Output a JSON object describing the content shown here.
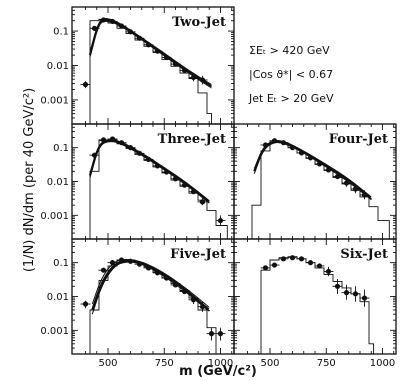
{
  "chart_data": {
    "type": "scatter",
    "ylabel": "(1/N)  dN/dm  (per 40 GeV/c²)",
    "xlabel": "m   (GeV/c²)",
    "cuts": [
      "ΣEₜ > 420 GeV",
      "|Cos ϑ*| < 0.67",
      "Jet Eₜ > 20 GeV"
    ],
    "xlim": [
      340,
      1060
    ],
    "ylim": [
      0.0002,
      0.5
    ],
    "yscale": "log",
    "x_ticks": [
      500,
      750,
      1000
    ],
    "y_ticks": [
      {
        "v": 0.1,
        "label": "0.1"
      },
      {
        "v": 0.01,
        "label": "0.01"
      },
      {
        "v": 0.001,
        "label": "0.001"
      }
    ],
    "panels": [
      {
        "title": "Two-Jet",
        "show_y_labels": true,
        "show_x_labels": false,
        "points": [
          {
            "x": 400,
            "y": 0.0028,
            "lo": 0.0022,
            "hi": 0.0035
          },
          {
            "x": 440,
            "y": 0.12
          },
          {
            "x": 480,
            "y": 0.21
          },
          {
            "x": 520,
            "y": 0.19
          },
          {
            "x": 560,
            "y": 0.14
          },
          {
            "x": 600,
            "y": 0.095
          },
          {
            "x": 640,
            "y": 0.062
          },
          {
            "x": 680,
            "y": 0.04
          },
          {
            "x": 720,
            "y": 0.026
          },
          {
            "x": 760,
            "y": 0.017
          },
          {
            "x": 800,
            "y": 0.011
          },
          {
            "x": 840,
            "y": 0.0072
          },
          {
            "x": 880,
            "y": 0.0045,
            "lo": 0.0035,
            "hi": 0.0056
          },
          {
            "x": 920,
            "y": 0.0038,
            "lo": 0.0028,
            "hi": 0.005
          }
        ],
        "histogram": {
          "edges": [
            420,
            460,
            500,
            540,
            580,
            620,
            660,
            700,
            740,
            780,
            820,
            860,
            900,
            940,
            960
          ],
          "values": [
            0.2,
            0.22,
            0.17,
            0.12,
            0.085,
            0.055,
            0.036,
            0.024,
            0.015,
            0.0095,
            0.006,
            0.0042,
            0.0016,
            0.0004
          ]
        },
        "curves": [
          {
            "x": [
              420,
              460,
              500,
              560,
              650,
              750,
              850,
              960
            ],
            "y": [
              0.02,
              0.2,
              0.22,
              0.15,
              0.06,
              0.021,
              0.007,
              0.0025
            ]
          },
          {
            "x": [
              420,
              460,
              500,
              560,
              650,
              750,
              850,
              960
            ],
            "y": [
              0.025,
              0.22,
              0.24,
              0.16,
              0.064,
              0.023,
              0.0078,
              0.0028
            ]
          },
          {
            "x": [
              420,
              460,
              500,
              560,
              650,
              750,
              850,
              960
            ],
            "y": [
              0.018,
              0.18,
              0.2,
              0.14,
              0.056,
              0.019,
              0.0065,
              0.0022
            ]
          }
        ]
      },
      {
        "title": "",
        "show_y_labels": false,
        "show_x_labels": false,
        "points": [],
        "histogram": null,
        "curves": []
      },
      {
        "title": "Three-Jet",
        "show_y_labels": true,
        "show_x_labels": false,
        "points": [
          {
            "x": 440,
            "y": 0.06
          },
          {
            "x": 480,
            "y": 0.17
          },
          {
            "x": 520,
            "y": 0.18
          },
          {
            "x": 560,
            "y": 0.14
          },
          {
            "x": 600,
            "y": 0.1
          },
          {
            "x": 640,
            "y": 0.068
          },
          {
            "x": 680,
            "y": 0.045
          },
          {
            "x": 720,
            "y": 0.029
          },
          {
            "x": 760,
            "y": 0.019
          },
          {
            "x": 800,
            "y": 0.012
          },
          {
            "x": 840,
            "y": 0.0078
          },
          {
            "x": 880,
            "y": 0.005
          },
          {
            "x": 920,
            "y": 0.0025,
            "lo": 0.002,
            "hi": 0.0033
          },
          {
            "x": 1000,
            "y": 0.0007,
            "lo": 0.0005,
            "hi": 0.001
          }
        ],
        "histogram": {
          "edges": [
            420,
            460,
            500,
            540,
            580,
            620,
            660,
            700,
            740,
            780,
            820,
            860,
            900,
            940,
            980,
            1030
          ],
          "values": [
            0.02,
            0.16,
            0.17,
            0.13,
            0.095,
            0.063,
            0.042,
            0.027,
            0.018,
            0.011,
            0.0072,
            0.0045,
            0.0028,
            0.0014,
            0.0005
          ]
        },
        "curves": [
          {
            "x": [
              420,
              460,
              510,
              560,
              650,
              750,
              850,
              950
            ],
            "y": [
              0.015,
              0.13,
              0.17,
              0.14,
              0.065,
              0.024,
              0.0085,
              0.0025
            ]
          },
          {
            "x": [
              420,
              460,
              510,
              560,
              650,
              750,
              850,
              950
            ],
            "y": [
              0.018,
              0.14,
              0.18,
              0.15,
              0.07,
              0.026,
              0.0092,
              0.0027
            ]
          },
          {
            "x": [
              420,
              460,
              510,
              560,
              650,
              750,
              850,
              950
            ],
            "y": [
              0.013,
              0.12,
              0.16,
              0.13,
              0.06,
              0.022,
              0.0078,
              0.0023
            ]
          }
        ]
      },
      {
        "title": "Four-Jet",
        "show_y_labels": false,
        "show_x_labels": false,
        "points": [
          {
            "x": 480,
            "y": 0.12
          },
          {
            "x": 520,
            "y": 0.16
          },
          {
            "x": 560,
            "y": 0.14
          },
          {
            "x": 600,
            "y": 0.1
          },
          {
            "x": 640,
            "y": 0.07
          },
          {
            "x": 680,
            "y": 0.05
          },
          {
            "x": 720,
            "y": 0.033
          },
          {
            "x": 760,
            "y": 0.022
          },
          {
            "x": 800,
            "y": 0.014
          },
          {
            "x": 840,
            "y": 0.009,
            "lo": 0.007,
            "hi": 0.0115
          },
          {
            "x": 880,
            "y": 0.006,
            "lo": 0.0045,
            "hi": 0.008
          },
          {
            "x": 920,
            "y": 0.004,
            "lo": 0.003,
            "hi": 0.0055
          }
        ],
        "histogram": {
          "edges": [
            420,
            460,
            500,
            540,
            580,
            620,
            660,
            700,
            740,
            780,
            820,
            860,
            900,
            940,
            980,
            1030
          ],
          "values": [
            0.002,
            0.08,
            0.15,
            0.14,
            0.1,
            0.07,
            0.048,
            0.032,
            0.021,
            0.013,
            0.0085,
            0.0055,
            0.0035,
            0.0018,
            0.0007
          ]
        },
        "curves": [
          {
            "x": [
              430,
              470,
              520,
              570,
              650,
              750,
              850,
              950
            ],
            "y": [
              0.02,
              0.1,
              0.16,
              0.14,
              0.075,
              0.03,
              0.011,
              0.0032
            ]
          },
          {
            "x": [
              430,
              470,
              520,
              570,
              650,
              750,
              850,
              950
            ],
            "y": [
              0.024,
              0.11,
              0.17,
              0.15,
              0.08,
              0.032,
              0.012,
              0.0035
            ]
          },
          {
            "x": [
              430,
              470,
              520,
              570,
              650,
              750,
              850,
              950
            ],
            "y": [
              0.017,
              0.09,
              0.15,
              0.13,
              0.07,
              0.027,
              0.0098,
              0.0029
            ]
          }
        ]
      },
      {
        "title": "Five-Jet",
        "show_y_labels": true,
        "show_x_labels": true,
        "points": [
          {
            "x": 400,
            "y": 0.006,
            "lo": 0.0045,
            "hi": 0.0075
          },
          {
            "x": 480,
            "y": 0.06
          },
          {
            "x": 520,
            "y": 0.1
          },
          {
            "x": 560,
            "y": 0.12
          },
          {
            "x": 600,
            "y": 0.11
          },
          {
            "x": 640,
            "y": 0.09
          },
          {
            "x": 680,
            "y": 0.07
          },
          {
            "x": 720,
            "y": 0.05
          },
          {
            "x": 760,
            "y": 0.035
          },
          {
            "x": 800,
            "y": 0.022
          },
          {
            "x": 840,
            "y": 0.014
          },
          {
            "x": 880,
            "y": 0.008,
            "lo": 0.006,
            "hi": 0.011
          },
          {
            "x": 920,
            "y": 0.005,
            "lo": 0.0035,
            "hi": 0.007
          },
          {
            "x": 960,
            "y": 0.0008,
            "lo": 0.0005,
            "hi": 0.0012
          },
          {
            "x": 1000,
            "y": 0.0008,
            "lo": 0.0005,
            "hi": 0.0012
          }
        ],
        "histogram": {
          "edges": [
            420,
            460,
            500,
            540,
            580,
            620,
            660,
            700,
            740,
            780,
            820,
            860,
            900,
            940,
            980
          ],
          "values": [
            0.004,
            0.03,
            0.08,
            0.12,
            0.12,
            0.1,
            0.075,
            0.053,
            0.036,
            0.024,
            0.015,
            0.009,
            0.004,
            0.0012
          ]
        },
        "curves": [
          {
            "x": [
              430,
              470,
              520,
              570,
              650,
              750,
              850,
              950
            ],
            "y": [
              0.004,
              0.025,
              0.08,
              0.12,
              0.1,
              0.045,
              0.015,
              0.004
            ]
          },
          {
            "x": [
              430,
              470,
              520,
              570,
              650,
              750,
              850,
              950
            ],
            "y": [
              0.006,
              0.035,
              0.1,
              0.13,
              0.11,
              0.05,
              0.017,
              0.0048
            ]
          },
          {
            "x": [
              430,
              470,
              520,
              570,
              650,
              750,
              850,
              950
            ],
            "y": [
              0.003,
              0.02,
              0.07,
              0.11,
              0.095,
              0.04,
              0.013,
              0.0036
            ]
          }
        ]
      },
      {
        "title": "Six-Jet",
        "show_y_labels": false,
        "show_x_labels": true,
        "points": [
          {
            "x": 480,
            "y": 0.07
          },
          {
            "x": 520,
            "y": 0.085
          },
          {
            "x": 560,
            "y": 0.13
          },
          {
            "x": 600,
            "y": 0.14
          },
          {
            "x": 640,
            "y": 0.13
          },
          {
            "x": 680,
            "y": 0.1
          },
          {
            "x": 720,
            "y": 0.08
          },
          {
            "x": 760,
            "y": 0.055,
            "lo": 0.04,
            "hi": 0.075
          },
          {
            "x": 800,
            "y": 0.02,
            "lo": 0.012,
            "hi": 0.033
          },
          {
            "x": 840,
            "y": 0.013,
            "lo": 0.008,
            "hi": 0.022
          },
          {
            "x": 880,
            "y": 0.012,
            "lo": 0.007,
            "hi": 0.02
          },
          {
            "x": 920,
            "y": 0.009,
            "lo": 0.005,
            "hi": 0.016
          }
        ],
        "histogram": {
          "edges": [
            460,
            500,
            540,
            580,
            620,
            660,
            700,
            740,
            780,
            820,
            860,
            900,
            940,
            960
          ],
          "values": [
            0.06,
            0.12,
            0.14,
            0.15,
            0.13,
            0.1,
            0.07,
            0.045,
            0.028,
            0.018,
            0.012,
            0.007,
            0.0004
          ]
        },
        "curves": []
      }
    ]
  }
}
